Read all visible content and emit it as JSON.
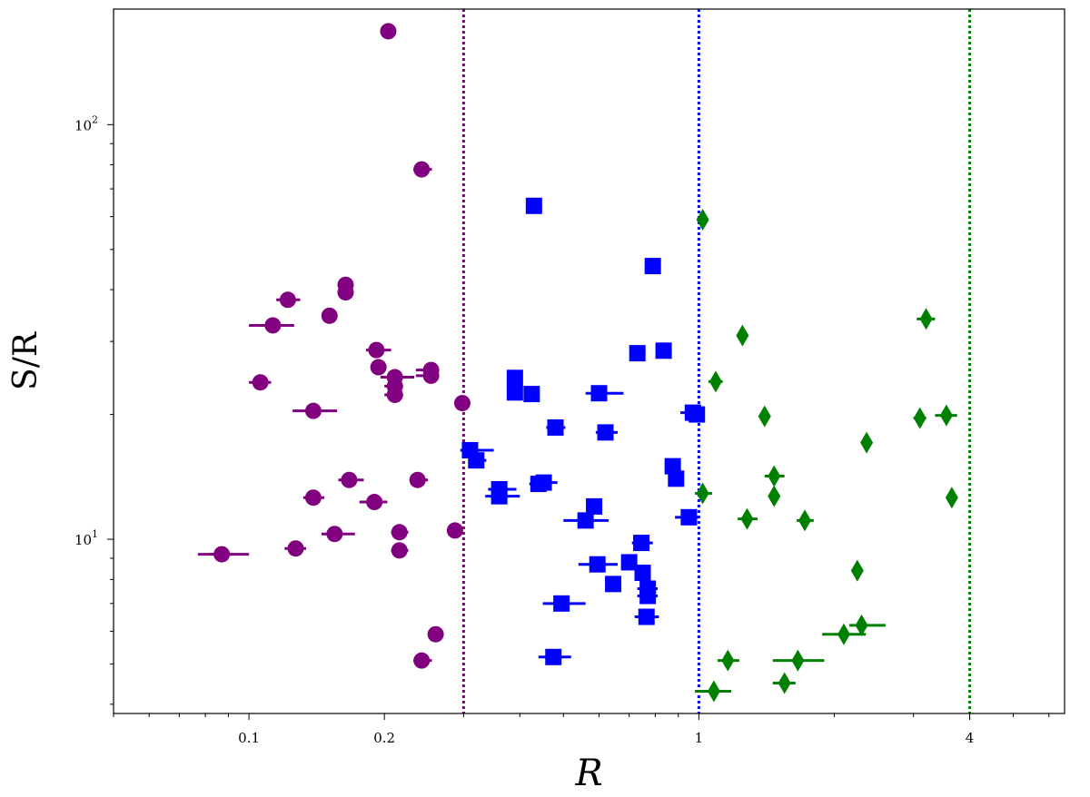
{
  "chart_data": {
    "type": "scatter",
    "title": "",
    "xlabel": "R",
    "ylabel": "S/R",
    "xscale": "log",
    "yscale": "log",
    "xlim": [
      0.05,
      6.5
    ],
    "ylim": [
      3.8,
      190
    ],
    "grid": false,
    "legend": "none",
    "x_ticks": [
      {
        "value": 0.1,
        "label": "0.1"
      },
      {
        "value": 0.2,
        "label": "0.2"
      },
      {
        "value": 1,
        "label": "1"
      },
      {
        "value": 4,
        "label": "4"
      }
    ],
    "y_ticks": [
      {
        "value": 10,
        "label": "10",
        "exp": "1"
      },
      {
        "value": 100,
        "label": "10",
        "exp": "2"
      }
    ],
    "reference_lines": [
      {
        "x": 0.3,
        "color": "#800080",
        "style": "dotted"
      },
      {
        "x": 1.0,
        "color": "#0000ff",
        "style": "dotted"
      },
      {
        "x": 4.0,
        "color": "#008000",
        "style": "dotted"
      }
    ],
    "series": [
      {
        "marker": "circle",
        "color": "#800080",
        "points": [
          {
            "x": 0.087,
            "y": 9.2,
            "xerr": [
              0.077,
              0.1
            ]
          },
          {
            "x": 0.106,
            "y": 23.9,
            "xerr": [
              0.1,
              0.112
            ]
          },
          {
            "x": 0.113,
            "y": 32.8,
            "xerr": [
              0.1,
              0.126
            ]
          },
          {
            "x": 0.122,
            "y": 37.8,
            "xerr": [
              0.115,
              0.13
            ]
          },
          {
            "x": 0.127,
            "y": 9.5,
            "xerr": [
              0.12,
              0.134
            ]
          },
          {
            "x": 0.139,
            "y": 20.4,
            "xerr": [
              0.125,
              0.157
            ]
          },
          {
            "x": 0.139,
            "y": 12.6,
            "xerr": [
              0.132,
              0.147
            ]
          },
          {
            "x": 0.151,
            "y": 34.6,
            "xerr": [
              0.147,
              0.156
            ]
          },
          {
            "x": 0.155,
            "y": 10.3,
            "xerr": [
              0.145,
              0.172
            ]
          },
          {
            "x": 0.164,
            "y": 41.1,
            "xerr": [
              0.158,
              0.17
            ]
          },
          {
            "x": 0.164,
            "y": 39.4,
            "xerr": [
              0.16,
              0.168
            ]
          },
          {
            "x": 0.167,
            "y": 13.9,
            "xerr": [
              0.158,
              0.18
            ]
          },
          {
            "x": 0.192,
            "y": 28.6,
            "xerr": [
              0.182,
              0.207
            ]
          },
          {
            "x": 0.19,
            "y": 12.3,
            "xerr": [
              0.176,
              0.203
            ]
          },
          {
            "x": 0.194,
            "y": 26.0,
            "xerr": [
              0.19,
              0.198
            ]
          },
          {
            "x": 0.211,
            "y": 24.6,
            "xerr": [
              0.196,
              0.233
            ]
          },
          {
            "x": 0.211,
            "y": 23.4,
            "xerr": [
              0.2,
              0.22
            ]
          },
          {
            "x": 0.211,
            "y": 22.3,
            "xerr": [
              0.2,
              0.22
            ]
          },
          {
            "x": 0.204,
            "y": 168.0,
            "xerr": [
              0.204,
              0.204
            ]
          },
          {
            "x": 0.216,
            "y": 10.4,
            "xerr": [
              0.207,
              0.226
            ]
          },
          {
            "x": 0.216,
            "y": 9.4,
            "xerr": [
              0.207,
              0.226
            ]
          },
          {
            "x": 0.237,
            "y": 13.9,
            "xerr": [
              0.23,
              0.25
            ]
          },
          {
            "x": 0.242,
            "y": 78.0,
            "xerr": [
              0.232,
              0.255
            ]
          },
          {
            "x": 0.242,
            "y": 5.1,
            "xerr": [
              0.232,
              0.255
            ]
          },
          {
            "x": 0.254,
            "y": 25.6,
            "xerr": [
              0.235,
              0.262
            ]
          },
          {
            "x": 0.254,
            "y": 24.8,
            "xerr": [
              0.235,
              0.262
            ]
          },
          {
            "x": 0.26,
            "y": 5.9,
            "xerr": [
              0.255,
              0.265
            ]
          },
          {
            "x": 0.287,
            "y": 10.5,
            "xerr": [
              0.282,
              0.293
            ]
          },
          {
            "x": 0.298,
            "y": 21.3,
            "xerr": [
              0.29,
              0.305
            ]
          }
        ]
      },
      {
        "marker": "square",
        "color": "#0000ff",
        "points": [
          {
            "x": 0.31,
            "y": 16.4,
            "xerr": [
              0.295,
              0.35
            ]
          },
          {
            "x": 0.32,
            "y": 15.5,
            "xerr": [
              0.31,
              0.337
            ]
          },
          {
            "x": 0.36,
            "y": 13.2,
            "xerr": [
              0.34,
              0.393
            ]
          },
          {
            "x": 0.36,
            "y": 12.7,
            "xerr": [
              0.335,
              0.4
            ]
          },
          {
            "x": 0.39,
            "y": 24.5,
            "xerr": [
              0.38,
              0.398
            ]
          },
          {
            "x": 0.39,
            "y": 22.6,
            "xerr": [
              0.375,
              0.405
            ]
          },
          {
            "x": 0.425,
            "y": 22.4,
            "xerr": [
              0.417,
              0.433
            ]
          },
          {
            "x": 0.43,
            "y": 63.7,
            "xerr": [
              0.425,
              0.437
            ]
          },
          {
            "x": 0.44,
            "y": 13.6,
            "xerr": [
              0.42,
              0.462
            ]
          },
          {
            "x": 0.452,
            "y": 13.7,
            "xerr": [
              0.432,
              0.485
            ]
          },
          {
            "x": 0.48,
            "y": 18.6,
            "xerr": [
              0.458,
              0.505
            ]
          },
          {
            "x": 0.475,
            "y": 5.2,
            "xerr": [
              0.44,
              0.52
            ]
          },
          {
            "x": 0.495,
            "y": 7.0,
            "xerr": [
              0.45,
              0.56
            ]
          },
          {
            "x": 0.56,
            "y": 11.1,
            "xerr": [
              0.5,
              0.63
            ]
          },
          {
            "x": 0.585,
            "y": 12.0,
            "xerr": [
              0.57,
              0.6
            ]
          },
          {
            "x": 0.595,
            "y": 8.7,
            "xerr": [
              0.54,
              0.66
            ]
          },
          {
            "x": 0.6,
            "y": 22.5,
            "xerr": [
              0.56,
              0.68
            ]
          },
          {
            "x": 0.62,
            "y": 18.1,
            "xerr": [
              0.59,
              0.66
            ]
          },
          {
            "x": 0.645,
            "y": 7.8,
            "xerr": [
              0.625,
              0.665
            ]
          },
          {
            "x": 0.7,
            "y": 8.8,
            "xerr": [
              0.68,
              0.72
            ]
          },
          {
            "x": 0.73,
            "y": 28.1,
            "xerr": [
              0.715,
              0.745
            ]
          },
          {
            "x": 0.745,
            "y": 9.8,
            "xerr": [
              0.71,
              0.79
            ]
          },
          {
            "x": 0.75,
            "y": 8.3,
            "xerr": [
              0.73,
              0.77
            ]
          },
          {
            "x": 0.77,
            "y": 7.6,
            "xerr": [
              0.73,
              0.81
            ]
          },
          {
            "x": 0.77,
            "y": 7.3,
            "xerr": [
              0.73,
              0.81
            ]
          },
          {
            "x": 0.765,
            "y": 6.5,
            "xerr": [
              0.72,
              0.815
            ]
          },
          {
            "x": 0.79,
            "y": 45.6,
            "xerr": [
              0.78,
              0.8
            ]
          },
          {
            "x": 0.835,
            "y": 28.5,
            "xerr": [
              0.82,
              0.85
            ]
          },
          {
            "x": 0.875,
            "y": 15.0,
            "xerr": [
              0.84,
              0.9
            ]
          },
          {
            "x": 0.89,
            "y": 14.0,
            "xerr": [
              0.87,
              0.91
            ]
          },
          {
            "x": 0.95,
            "y": 11.3,
            "xerr": [
              0.885,
              1.0
            ]
          },
          {
            "x": 0.97,
            "y": 20.2,
            "xerr": [
              0.91,
              1.0
            ]
          },
          {
            "x": 0.99,
            "y": 20.0,
            "xerr": [
              0.97,
              1.01
            ]
          }
        ]
      },
      {
        "marker": "diamond",
        "color": "#008000",
        "points": [
          {
            "x": 1.02,
            "y": 59.0,
            "xerr": [
              1.02,
              1.02
            ]
          },
          {
            "x": 1.02,
            "y": 12.9,
            "xerr": [
              0.98,
              1.07
            ]
          },
          {
            "x": 1.08,
            "y": 4.3,
            "xerr": [
              0.98,
              1.18
            ]
          },
          {
            "x": 1.09,
            "y": 24.0,
            "xerr": [
              1.05,
              1.13
            ]
          },
          {
            "x": 1.16,
            "y": 5.1,
            "xerr": [
              1.1,
              1.23
            ]
          },
          {
            "x": 1.25,
            "y": 31.0,
            "xerr": [
              1.22,
              1.28
            ]
          },
          {
            "x": 1.28,
            "y": 11.2,
            "xerr": [
              1.22,
              1.35
            ]
          },
          {
            "x": 1.4,
            "y": 19.8,
            "xerr": [
              1.39,
              1.41
            ]
          },
          {
            "x": 1.47,
            "y": 14.2,
            "xerr": [
              1.4,
              1.55
            ]
          },
          {
            "x": 1.47,
            "y": 12.7,
            "xerr": [
              1.45,
              1.49
            ]
          },
          {
            "x": 1.55,
            "y": 4.5,
            "xerr": [
              1.46,
              1.64
            ]
          },
          {
            "x": 1.66,
            "y": 5.1,
            "xerr": [
              1.46,
              1.9
            ]
          },
          {
            "x": 1.72,
            "y": 11.1,
            "xerr": [
              1.65,
              1.8
            ]
          },
          {
            "x": 2.1,
            "y": 5.9,
            "xerr": [
              1.88,
              2.35
            ]
          },
          {
            "x": 2.25,
            "y": 8.4,
            "xerr": [
              2.23,
              2.27
            ]
          },
          {
            "x": 2.3,
            "y": 6.2,
            "xerr": [
              2.16,
              2.6
            ]
          },
          {
            "x": 2.36,
            "y": 17.1,
            "xerr": [
              2.34,
              2.38
            ]
          },
          {
            "x": 3.1,
            "y": 19.6,
            "xerr": [
              3.0,
              3.2
            ]
          },
          {
            "x": 3.2,
            "y": 34.0,
            "xerr": [
              3.05,
              3.35
            ]
          },
          {
            "x": 3.55,
            "y": 19.9,
            "xerr": [
              3.35,
              3.75
            ]
          },
          {
            "x": 3.65,
            "y": 12.6,
            "xerr": [
              3.62,
              3.68
            ]
          }
        ]
      }
    ]
  }
}
